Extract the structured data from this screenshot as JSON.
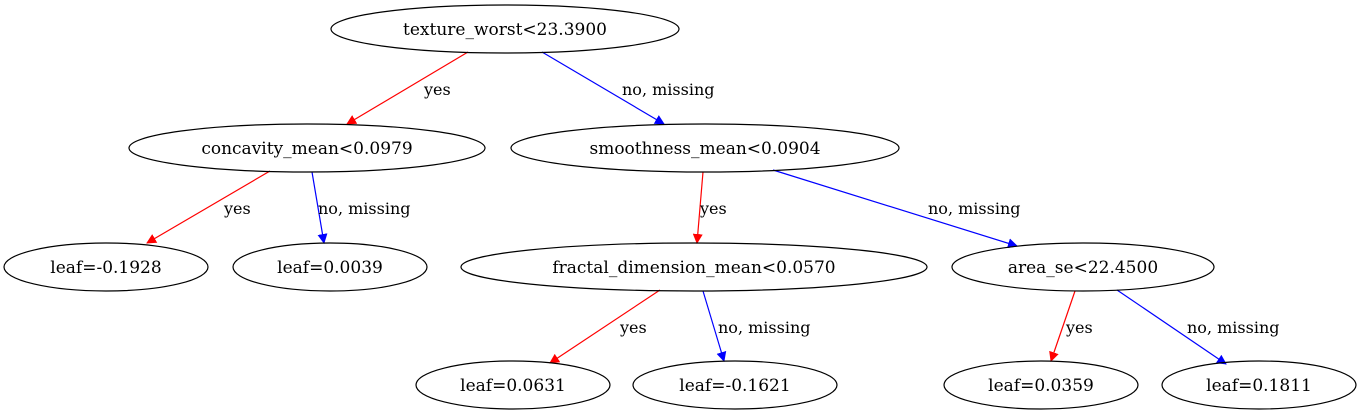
{
  "colors": {
    "yes_edge": "#ff0000",
    "no_edge": "#0000ff",
    "node_stroke": "#000000"
  },
  "nodes": [
    {
      "id": "n0",
      "label": "texture_worst<23.3900"
    },
    {
      "id": "n1",
      "label": "concavity_mean<0.0979"
    },
    {
      "id": "n2",
      "label": "smoothness_mean<0.0904"
    },
    {
      "id": "n3",
      "label": "leaf=-0.1928"
    },
    {
      "id": "n4",
      "label": "leaf=0.0039"
    },
    {
      "id": "n5",
      "label": "fractal_dimension_mean<0.0570"
    },
    {
      "id": "n6",
      "label": "area_se<22.4500"
    },
    {
      "id": "n7",
      "label": "leaf=0.0631"
    },
    {
      "id": "n8",
      "label": "leaf=-0.1621"
    },
    {
      "id": "n9",
      "label": "leaf=0.0359"
    },
    {
      "id": "n10",
      "label": "leaf=0.1811"
    }
  ],
  "edges": [
    {
      "from": "n0",
      "to": "n1",
      "label": "yes",
      "kind": "yes"
    },
    {
      "from": "n0",
      "to": "n2",
      "label": "no, missing",
      "kind": "no"
    },
    {
      "from": "n1",
      "to": "n3",
      "label": "yes",
      "kind": "yes"
    },
    {
      "from": "n1",
      "to": "n4",
      "label": "no, missing",
      "kind": "no"
    },
    {
      "from": "n2",
      "to": "n5",
      "label": "yes",
      "kind": "yes"
    },
    {
      "from": "n2",
      "to": "n6",
      "label": "no, missing",
      "kind": "no"
    },
    {
      "from": "n5",
      "to": "n7",
      "label": "yes",
      "kind": "yes"
    },
    {
      "from": "n5",
      "to": "n8",
      "label": "no, missing",
      "kind": "no"
    },
    {
      "from": "n6",
      "to": "n9",
      "label": "yes",
      "kind": "yes"
    },
    {
      "from": "n6",
      "to": "n10",
      "label": "no, missing",
      "kind": "no"
    }
  ]
}
